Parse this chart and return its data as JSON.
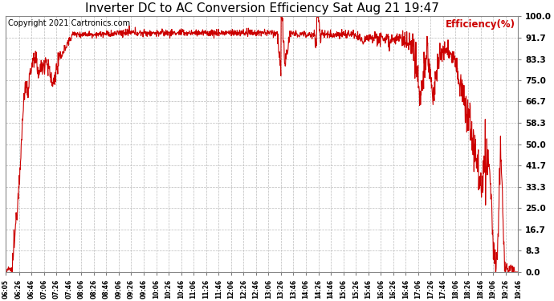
{
  "title": "Inverter DC to AC Conversion Efficiency Sat Aug 21 19:47",
  "title_fontsize": 11,
  "copyright_text": "Copyright 2021 Cartronics.com",
  "legend_label": "Efficiency(%)",
  "line_color": "#cc0000",
  "bg_color": "#ffffff",
  "grid_color": "#bbbbbb",
  "ylim": [
    0.0,
    100.0
  ],
  "yticks": [
    0.0,
    8.3,
    16.7,
    25.0,
    33.3,
    41.7,
    50.0,
    58.3,
    66.7,
    75.0,
    83.3,
    91.7,
    100.0
  ],
  "xtick_labels": [
    "06:05",
    "06:26",
    "06:46",
    "07:06",
    "07:26",
    "07:46",
    "08:06",
    "08:26",
    "08:46",
    "09:06",
    "09:26",
    "09:46",
    "10:06",
    "10:26",
    "10:46",
    "11:06",
    "11:26",
    "11:46",
    "12:06",
    "12:26",
    "12:46",
    "13:06",
    "13:26",
    "13:46",
    "14:06",
    "14:26",
    "14:46",
    "15:06",
    "15:26",
    "15:46",
    "16:06",
    "16:26",
    "16:46",
    "17:06",
    "17:26",
    "17:46",
    "18:06",
    "18:26",
    "18:46",
    "19:06",
    "19:26",
    "19:46"
  ]
}
